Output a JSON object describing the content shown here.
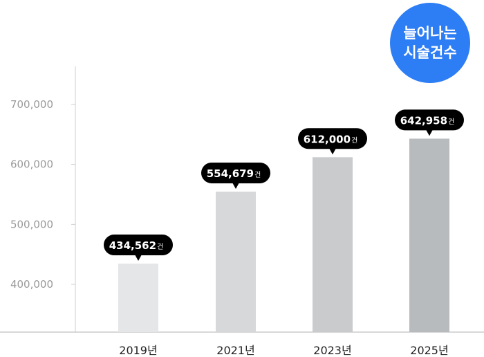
{
  "badge": {
    "line1": "늘어나는",
    "line2": "시술건수",
    "color": "#2d7df4"
  },
  "chart_data": {
    "type": "bar",
    "categories": [
      "2019년",
      "2021년",
      "2023년",
      "2025년"
    ],
    "values": [
      434562,
      554679,
      612000,
      642958
    ],
    "value_labels": [
      "434,562",
      "554,679",
      "612,000",
      "642,958"
    ],
    "value_unit": "건",
    "yticks": [
      400000,
      500000,
      600000,
      700000
    ],
    "ytick_labels": [
      "400,000",
      "500,000",
      "600,000",
      "700,000"
    ],
    "ylim": [
      320000,
      760000
    ],
    "bar_colors": [
      "#e5e6e7",
      "#d6d8da",
      "#c9cbcd",
      "#b7bbbd"
    ],
    "label_bubble_color": "#000000",
    "grid": false,
    "title": "",
    "xlabel": "",
    "ylabel": ""
  }
}
